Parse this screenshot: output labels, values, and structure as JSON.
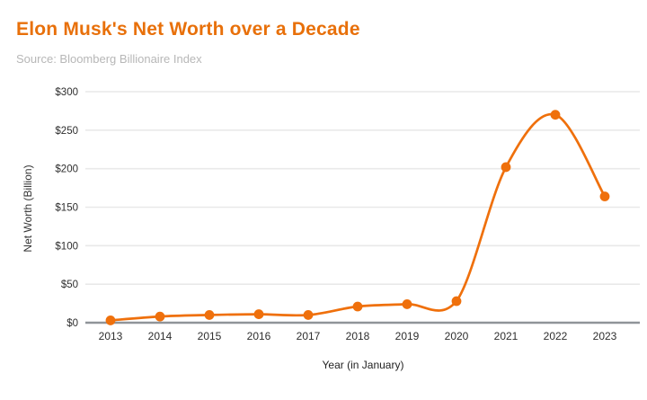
{
  "header": {
    "title": "Elon Musk's Net Worth over a Decade",
    "source": "Source: Bloomberg Billionaire Index"
  },
  "chart_data": {
    "type": "line",
    "title": "Elon Musk's Net Worth over a Decade",
    "subtitle": "Source: Bloomberg Billionaire Index",
    "categories": [
      "2013",
      "2014",
      "2015",
      "2016",
      "2017",
      "2018",
      "2019",
      "2020",
      "2021",
      "2022",
      "2023"
    ],
    "values": [
      3,
      8,
      10,
      11,
      10,
      21,
      24,
      28,
      202,
      270,
      164
    ],
    "xlabel": "Year (in January)",
    "ylabel": "Net Worth (Billion)",
    "ylim": [
      0,
      300
    ],
    "yticks": [
      0,
      50,
      100,
      150,
      200,
      250,
      300
    ],
    "ytick_labels": [
      "$0",
      "$50",
      "$100",
      "$150",
      "$200",
      "$250",
      "$300"
    ],
    "grid": true,
    "legend": "none",
    "smooth": true,
    "marker": "circle"
  },
  "style": {
    "series_color": "#ef700c",
    "title_color": "#e8700a",
    "source_color": "#b7b7b7",
    "gridline_color": "#e9e9e9",
    "axis_line_color": "#8f9499",
    "tick_label_color": "#2e2e2e",
    "background_color": "#ffffff"
  }
}
